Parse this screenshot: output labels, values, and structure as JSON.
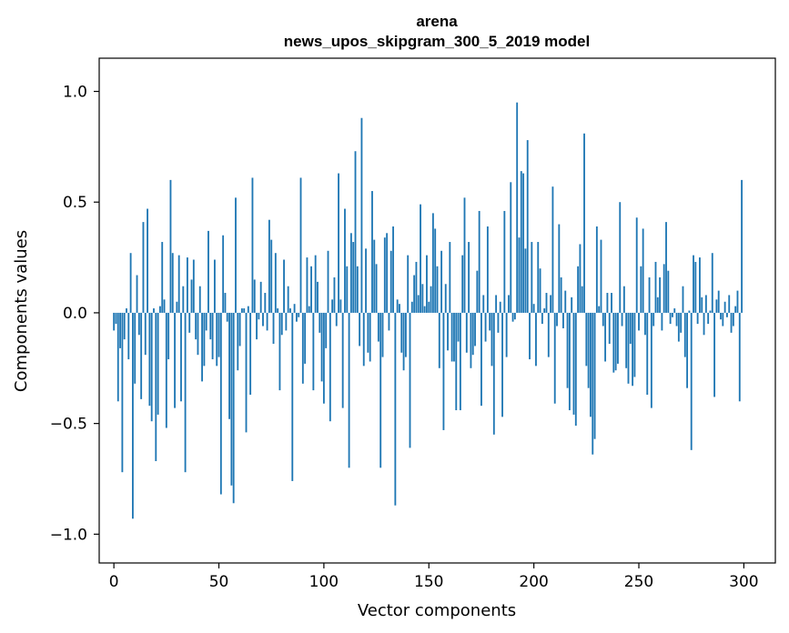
{
  "chart_data": {
    "type": "bar",
    "title_line1": "arena",
    "title_line2": "news_upos_skipgram_300_5_2019 model",
    "xlabel": "Vector components",
    "ylabel": "Components values",
    "xlim": [
      -7,
      315
    ],
    "ylim": [
      -1.13,
      1.15
    ],
    "xticks": [
      0,
      50,
      100,
      150,
      200,
      250,
      300
    ],
    "xtick_labels": [
      "0",
      "50",
      "100",
      "150",
      "200",
      "250",
      "300"
    ],
    "yticks": [
      -1.0,
      -0.5,
      0.0,
      0.5,
      1.0
    ],
    "ytick_labels": [
      "−1.0",
      "−0.5",
      "0.0",
      "0.5",
      "1.0"
    ],
    "bar_color": "#1f77b4",
    "x": "0..299",
    "values": [
      -0.08,
      -0.05,
      -0.4,
      -0.16,
      -0.72,
      -0.12,
      0.02,
      -0.21,
      0.27,
      -0.93,
      -0.32,
      0.17,
      -0.1,
      -0.39,
      0.41,
      -0.19,
      0.47,
      -0.42,
      -0.49,
      0.02,
      -0.67,
      -0.46,
      0.03,
      0.32,
      0.06,
      -0.52,
      -0.21,
      0.6,
      0.27,
      -0.43,
      0.05,
      0.26,
      -0.4,
      0.12,
      -0.72,
      0.25,
      -0.09,
      0.15,
      0.24,
      -0.12,
      -0.19,
      0.12,
      -0.31,
      -0.24,
      -0.08,
      0.37,
      -0.12,
      -0.21,
      0.24,
      -0.24,
      -0.2,
      -0.82,
      0.35,
      0.09,
      -0.04,
      -0.48,
      -0.78,
      -0.86,
      0.52,
      -0.26,
      -0.15,
      0.02,
      0.02,
      -0.54,
      0.03,
      -0.37,
      0.61,
      0.15,
      -0.12,
      -0.03,
      0.14,
      -0.06,
      0.09,
      -0.08,
      0.42,
      0.33,
      -0.14,
      0.27,
      0.02,
      -0.35,
      -0.1,
      0.24,
      -0.08,
      0.12,
      0.02,
      -0.76,
      0.04,
      -0.04,
      -0.02,
      0.61,
      -0.32,
      -0.23,
      0.25,
      0.03,
      0.21,
      -0.35,
      0.26,
      0.14,
      -0.09,
      -0.31,
      -0.41,
      -0.16,
      0.28,
      -0.49,
      0.06,
      0.16,
      -0.06,
      0.63,
      0.06,
      -0.43,
      0.47,
      0.21,
      -0.7,
      0.36,
      0.32,
      0.73,
      0.21,
      -0.15,
      0.88,
      -0.24,
      0.29,
      -0.18,
      -0.22,
      0.55,
      0.33,
      0.22,
      -0.13,
      -0.7,
      -0.2,
      0.34,
      0.36,
      -0.08,
      0.28,
      0.39,
      -0.87,
      0.06,
      0.04,
      -0.18,
      -0.26,
      -0.2,
      0.26,
      -0.61,
      0.05,
      0.17,
      0.23,
      0.08,
      0.49,
      0.13,
      0.03,
      0.26,
      0.05,
      0.12,
      0.45,
      0.38,
      0.21,
      -0.25,
      0.28,
      -0.53,
      0.13,
      -0.17,
      0.32,
      -0.22,
      -0.22,
      -0.44,
      -0.13,
      -0.44,
      0.26,
      0.52,
      -0.18,
      0.32,
      -0.25,
      -0.19,
      -0.15,
      0.19,
      0.46,
      -0.42,
      0.08,
      -0.13,
      0.39,
      -0.08,
      -0.24,
      -0.55,
      0.08,
      -0.09,
      0.05,
      -0.47,
      0.46,
      -0.2,
      0.08,
      0.59,
      -0.04,
      -0.03,
      0.95,
      0.34,
      0.64,
      0.63,
      0.29,
      0.78,
      -0.21,
      0.32,
      0.04,
      -0.24,
      0.32,
      0.2,
      -0.05,
      0.02,
      0.09,
      -0.2,
      0.08,
      0.57,
      -0.41,
      -0.06,
      0.4,
      0.16,
      -0.07,
      0.1,
      -0.34,
      -0.44,
      0.07,
      -0.46,
      -0.51,
      0.21,
      0.31,
      0.12,
      0.81,
      -0.24,
      -0.34,
      -0.47,
      -0.64,
      -0.57,
      0.39,
      0.03,
      0.33,
      -0.06,
      -0.22,
      0.09,
      -0.14,
      0.09,
      -0.27,
      -0.26,
      -0.23,
      0.5,
      -0.06,
      0.12,
      -0.25,
      -0.32,
      -0.14,
      -0.33,
      -0.29,
      0.43,
      -0.08,
      0.21,
      0.38,
      -0.1,
      -0.37,
      0.16,
      -0.43,
      -0.06,
      0.23,
      0.07,
      0.16,
      -0.08,
      0.22,
      0.41,
      0.19,
      -0.05,
      -0.02,
      0.02,
      -0.06,
      -0.13,
      -0.09,
      0.12,
      -0.2,
      -0.34,
      0.01,
      -0.62,
      0.26,
      0.23,
      -0.05,
      0.25,
      0.07,
      -0.1,
      0.08,
      -0.05,
      0.01,
      0.27,
      -0.38,
      0.06,
      0.1,
      -0.03,
      -0.06,
      0.05,
      -0.02,
      0.08,
      -0.09,
      -0.06,
      0.03,
      0.1,
      -0.4,
      0.6
    ]
  }
}
